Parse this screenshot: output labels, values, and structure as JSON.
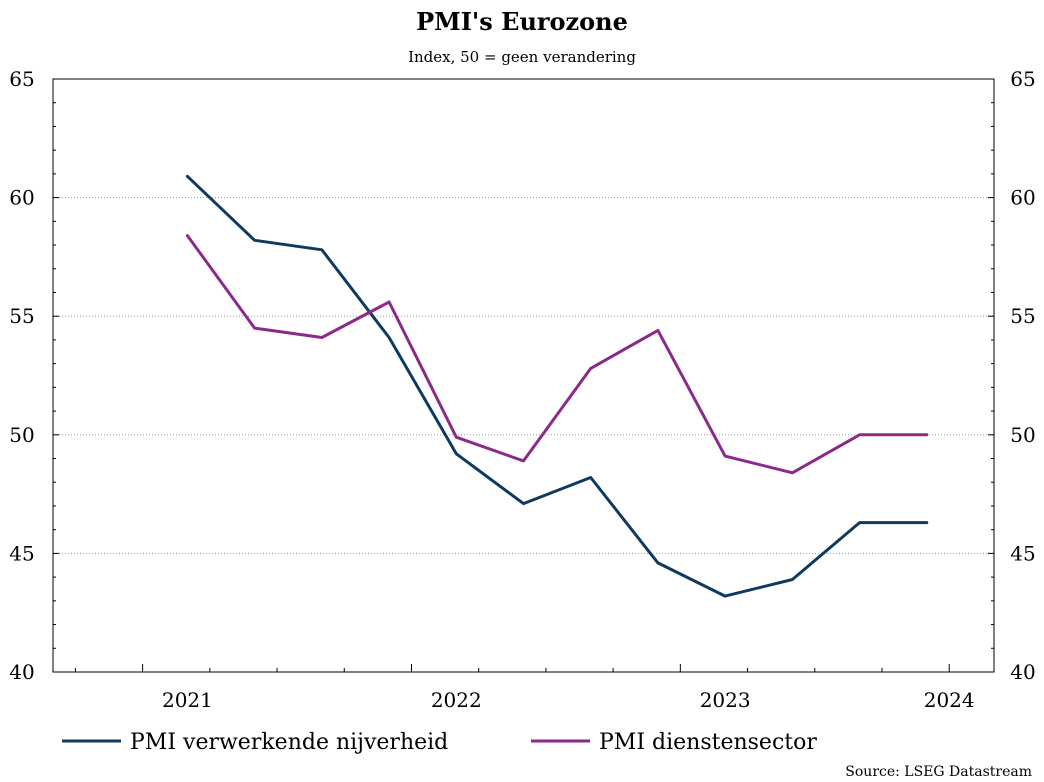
{
  "chart_data": {
    "type": "line",
    "title": "PMI's Eurozone",
    "subtitle": "Index, 50 = geen verandering",
    "source": "Source: LSEG Datastream",
    "ylim": [
      40,
      65
    ],
    "y_ticks": [
      40,
      45,
      50,
      55,
      60,
      65
    ],
    "x_axis": {
      "start": "2020-09",
      "end": "2024-03",
      "tick_labels": [
        {
          "label": "2021",
          "date": "2021-03"
        },
        {
          "label": "2022",
          "date": "2022-03"
        },
        {
          "label": "2023",
          "date": "2023-03"
        },
        {
          "label": "2024",
          "date": "2024-01"
        }
      ]
    },
    "grid": "horizontal dotted",
    "legend_position": "bottom",
    "x": [
      "2021-03",
      "2021-06",
      "2021-09",
      "2021-12",
      "2022-03",
      "2022-06",
      "2022-09",
      "2022-12",
      "2023-03",
      "2023-06",
      "2023-09",
      "2023-12"
    ],
    "series": [
      {
        "name": "PMI verwerkende nijverheid",
        "color": "#0f3a5f",
        "values": [
          60.9,
          58.2,
          57.8,
          54.1,
          49.2,
          47.1,
          48.2,
          44.6,
          43.2,
          43.9,
          46.3,
          46.3
        ]
      },
      {
        "name": "PMI dienstensector",
        "color": "#8b2a8b",
        "values": [
          58.4,
          54.5,
          54.1,
          55.6,
          49.9,
          48.9,
          52.8,
          54.4,
          49.1,
          48.4,
          50.0,
          50.0
        ]
      }
    ]
  }
}
